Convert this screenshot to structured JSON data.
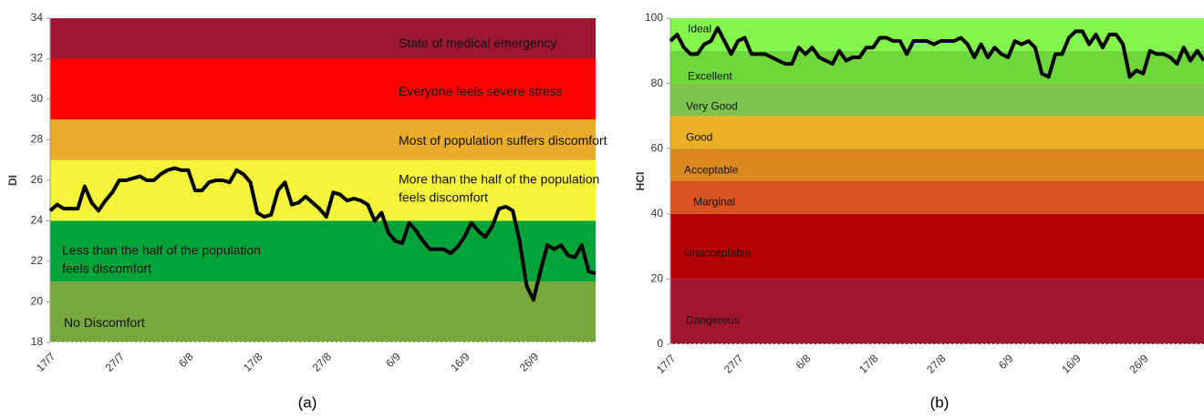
{
  "chart_data": [
    {
      "type": "line",
      "ylabel": "DI",
      "caption": "(a)",
      "categories": [
        "17/7",
        null,
        null,
        null,
        null,
        null,
        null,
        null,
        null,
        null,
        "27/7",
        null,
        null,
        null,
        null,
        null,
        null,
        null,
        null,
        null,
        "6/8",
        null,
        null,
        null,
        null,
        null,
        null,
        null,
        null,
        null,
        "17/8",
        null,
        null,
        null,
        null,
        null,
        null,
        null,
        null,
        null,
        "27/8",
        null,
        null,
        null,
        null,
        null,
        null,
        null,
        null,
        null,
        "6/9",
        null,
        null,
        null,
        null,
        null,
        null,
        null,
        null,
        null,
        "16/9",
        null,
        null,
        null,
        null,
        null,
        null,
        null,
        null,
        null,
        "26/9",
        null,
        null,
        null,
        null,
        null,
        null,
        null,
        null,
        null
      ],
      "values": [
        24.5,
        24.8,
        24.6,
        24.6,
        24.6,
        25.7,
        24.9,
        24.5,
        25.0,
        25.4,
        26.0,
        26.0,
        26.1,
        26.2,
        26.0,
        26.0,
        26.3,
        26.5,
        26.6,
        26.5,
        26.5,
        25.5,
        25.5,
        25.9,
        26.0,
        26.0,
        25.9,
        26.5,
        26.3,
        25.9,
        24.4,
        24.2,
        24.3,
        25.5,
        25.9,
        24.8,
        24.9,
        25.2,
        24.9,
        24.6,
        24.2,
        25.4,
        25.3,
        25.0,
        25.1,
        25.0,
        24.8,
        24.0,
        24.4,
        23.4,
        23.0,
        22.9,
        23.9,
        23.5,
        23.0,
        22.6,
        22.6,
        22.6,
        22.4,
        22.7,
        23.2,
        23.9,
        23.5,
        23.2,
        23.7,
        24.6,
        24.7,
        24.5,
        23.0,
        20.8,
        20.1,
        21.5,
        22.8,
        22.6,
        22.8,
        22.3,
        22.2,
        22.8,
        21.5,
        21.4
      ],
      "color": "#000000",
      "ylim": [
        18,
        34
      ],
      "yticks": [
        18,
        20,
        22,
        24,
        26,
        28,
        30,
        32,
        34
      ],
      "bands": [
        {
          "from": 18,
          "to": 21,
          "label": "No Discomfort",
          "color": "#78a83c"
        },
        {
          "from": 21,
          "to": 24,
          "label": "Less than the half of the population feels discomfort",
          "color": "#00a33a"
        },
        {
          "from": 24,
          "to": 27,
          "label": "More than the half of the population feels discomfort",
          "color": "#f4f43a"
        },
        {
          "from": 27,
          "to": 29,
          "label": "Most of population suffers discomfort",
          "color": "#e8ab2a"
        },
        {
          "from": 29,
          "to": 32,
          "label": "Everyone feels severe stress",
          "color": "#ff0000"
        },
        {
          "from": 32,
          "to": 34,
          "label": "State of medical emergency",
          "color": "#9c1832"
        }
      ]
    },
    {
      "type": "line",
      "ylabel": "HCI",
      "caption": "(b)",
      "categories": [
        "17/7",
        null,
        null,
        null,
        null,
        null,
        null,
        null,
        null,
        null,
        "27/7",
        null,
        null,
        null,
        null,
        null,
        null,
        null,
        null,
        null,
        "6/8",
        null,
        null,
        null,
        null,
        null,
        null,
        null,
        null,
        null,
        "17/8",
        null,
        null,
        null,
        null,
        null,
        null,
        null,
        null,
        null,
        "27/8",
        null,
        null,
        null,
        null,
        null,
        null,
        null,
        null,
        null,
        "6/9",
        null,
        null,
        null,
        null,
        null,
        null,
        null,
        null,
        null,
        "16/9",
        null,
        null,
        null,
        null,
        null,
        null,
        null,
        null,
        null,
        "26/9",
        null,
        null,
        null,
        null,
        null,
        null,
        null,
        null,
        null
      ],
      "values": [
        93,
        95,
        91,
        89,
        89,
        92,
        93,
        97,
        93,
        89,
        93,
        94,
        89,
        89,
        89,
        88,
        87,
        86,
        86,
        91,
        89,
        91,
        88,
        87,
        86,
        90,
        87,
        88,
        88,
        91,
        91,
        94,
        94,
        93,
        93,
        89,
        93,
        93,
        93,
        92,
        93,
        93,
        93,
        94,
        92,
        88,
        92,
        88,
        91,
        89,
        88,
        93,
        92,
        93,
        91,
        83,
        82,
        89,
        89,
        94,
        96,
        96,
        92,
        95,
        91,
        95,
        95,
        92,
        82,
        84,
        83,
        90,
        89,
        89,
        88,
        86,
        91,
        87,
        90,
        87
      ],
      "color": "#000000",
      "ylim": [
        0,
        100
      ],
      "yticks": [
        0,
        20,
        40,
        60,
        80,
        100
      ],
      "bands": [
        {
          "from": 0,
          "to": 20,
          "label": "Dangerous",
          "color": "#a0162f"
        },
        {
          "from": 20,
          "to": 40,
          "label": "Unacceptable",
          "color": "#b30000"
        },
        {
          "from": 40,
          "to": 50,
          "label": "Marginal",
          "color": "#d9521f"
        },
        {
          "from": 50,
          "to": 60,
          "label": "Acceptable",
          "color": "#dc891f"
        },
        {
          "from": 60,
          "to": 70,
          "label": "Good",
          "color": "#e9b026"
        },
        {
          "from": 70,
          "to": 80,
          "label": "Very Good",
          "color": "#7cc44c"
        },
        {
          "from": 80,
          "to": 90,
          "label": "Excellent",
          "color": "#6dd83c"
        },
        {
          "from": 90,
          "to": 100,
          "label": "Ideal",
          "color": "#84f54c"
        }
      ]
    }
  ]
}
